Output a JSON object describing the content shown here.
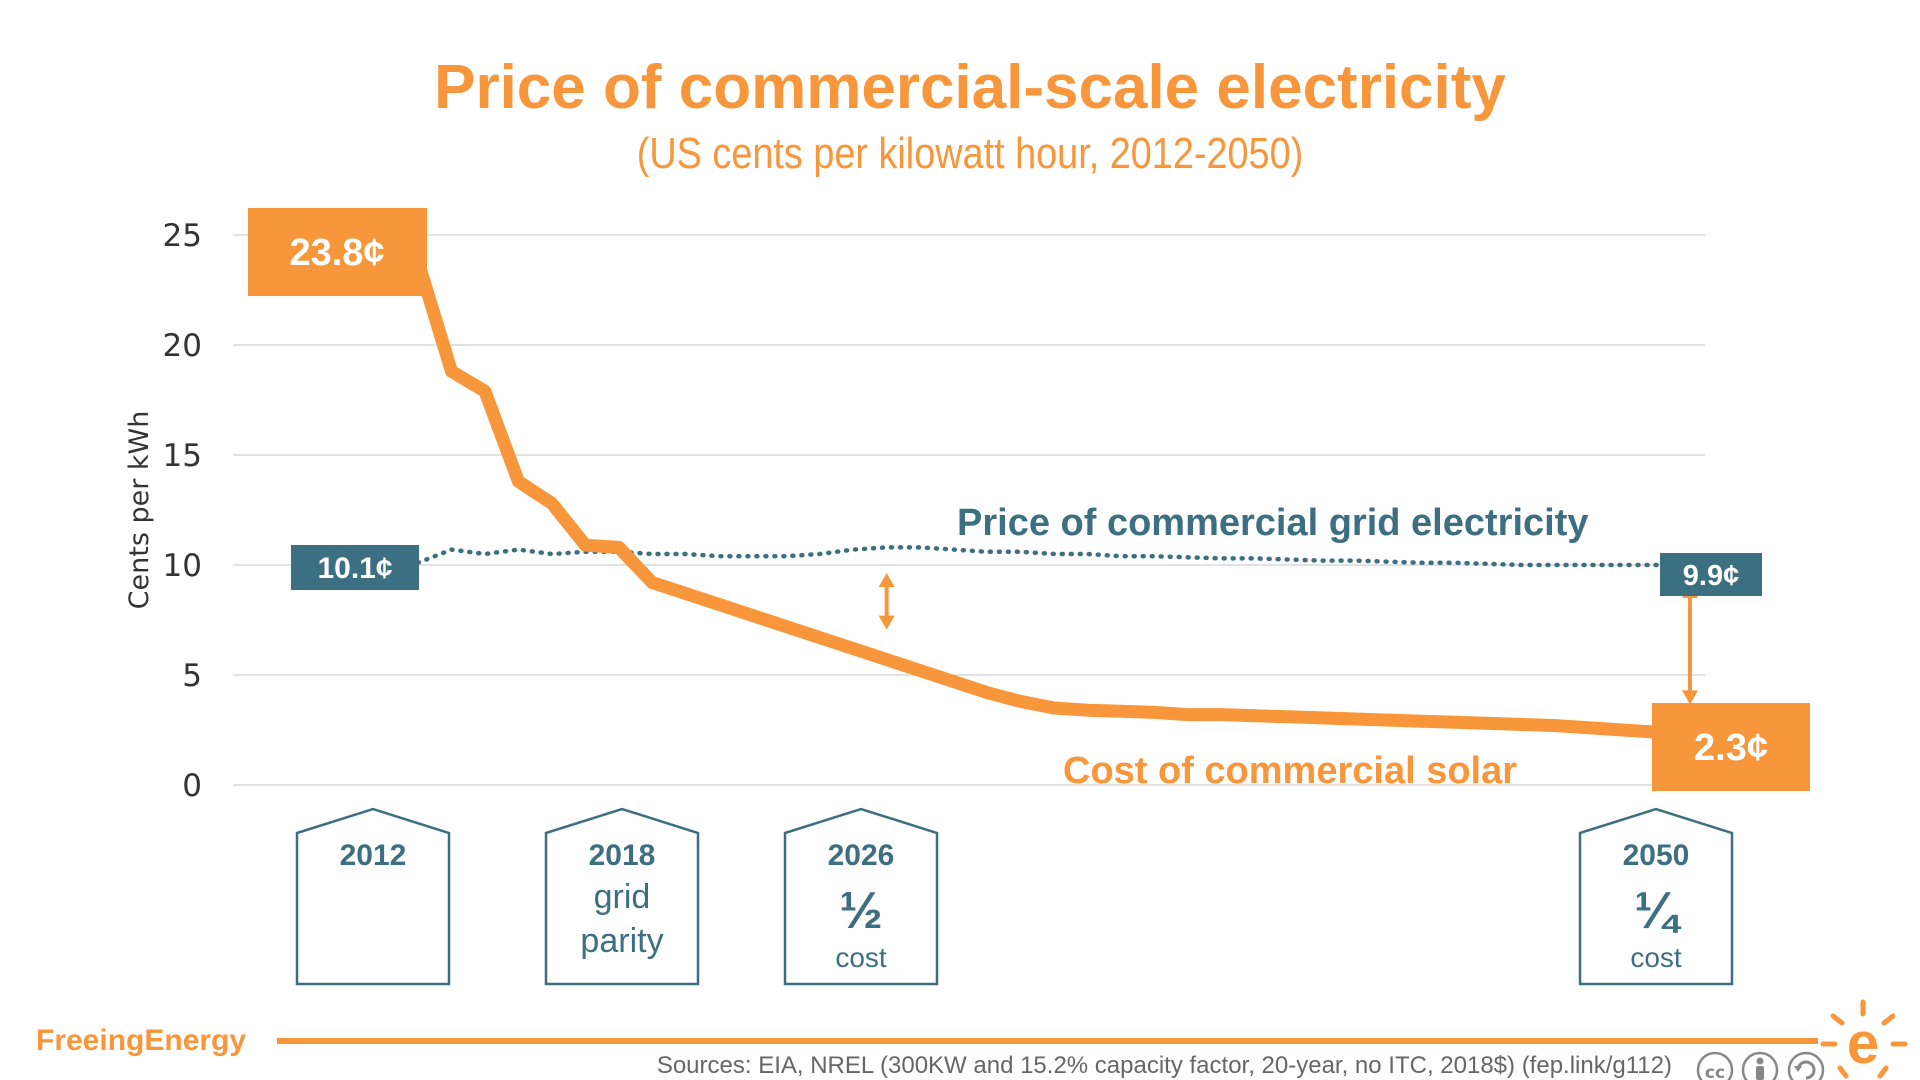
{
  "chart_data": {
    "type": "line",
    "title": "Price of commercial-scale electricity",
    "subtitle": "(US cents per kilowatt hour, 2012-2050)",
    "ylabel": "Cents per kWh",
    "xlabel": "",
    "ylim": [
      0,
      25
    ],
    "yticks": [
      "0",
      "5",
      "10",
      "15",
      "20",
      "25"
    ],
    "grid": true,
    "x": [
      2012,
      2013,
      2014,
      2015,
      2016,
      2017,
      2018,
      2019,
      2020,
      2021,
      2022,
      2023,
      2024,
      2025,
      2026,
      2027,
      2028,
      2029,
      2030,
      2031,
      2032,
      2033,
      2034,
      2035,
      2036,
      2037,
      2038,
      2039,
      2040,
      2041,
      2042,
      2043,
      2044,
      2045,
      2046,
      2047,
      2048,
      2049,
      2050
    ],
    "series": [
      {
        "name": "Cost of commercial solar",
        "color": "#f7963a",
        "style": "solid",
        "values": [
          23.8,
          18.8,
          17.9,
          13.8,
          12.8,
          10.9,
          10.8,
          9.2,
          8.7,
          8.2,
          7.7,
          7.2,
          6.7,
          6.2,
          5.7,
          5.2,
          4.7,
          4.2,
          3.8,
          3.5,
          3.4,
          3.35,
          3.3,
          3.2,
          3.2,
          3.15,
          3.1,
          3.05,
          3.0,
          2.95,
          2.9,
          2.85,
          2.8,
          2.75,
          2.7,
          2.6,
          2.5,
          2.4,
          2.3
        ]
      },
      {
        "name": "Price of commercial grid electricity",
        "color": "#3d6f83",
        "style": "dotted",
        "values": [
          10.1,
          10.7,
          10.5,
          10.7,
          10.5,
          10.6,
          10.6,
          10.5,
          10.5,
          10.4,
          10.4,
          10.4,
          10.5,
          10.7,
          10.8,
          10.8,
          10.7,
          10.6,
          10.6,
          10.5,
          10.5,
          10.4,
          10.4,
          10.35,
          10.3,
          10.3,
          10.25,
          10.2,
          10.2,
          10.15,
          10.1,
          10.1,
          10.05,
          10.0,
          10.0,
          10.0,
          10.0,
          10.0,
          9.9
        ]
      }
    ],
    "value_labels": [
      {
        "text": "23.8¢",
        "series": "Cost of commercial solar",
        "year": 2012
      },
      {
        "text": "10.1¢",
        "series": "Price of commercial grid electricity",
        "year": 2012
      },
      {
        "text": "9.9¢",
        "series": "Price of commercial grid electricity",
        "year": 2050
      },
      {
        "text": "2.3¢",
        "series": "Cost of commercial solar",
        "year": 2050
      }
    ],
    "series_labels": {
      "grid": "Price of commercial grid electricity",
      "solar": "Cost of commercial solar"
    },
    "gap_arrows": [
      {
        "year": 2026,
        "from": 10.0,
        "to": 6.7
      },
      {
        "year": 2050,
        "from": 9.5,
        "to": 3.3
      }
    ],
    "milestones": [
      {
        "year": "2012",
        "lines": []
      },
      {
        "year": "2018",
        "lines": [
          "grid",
          "parity"
        ]
      },
      {
        "year": "2026",
        "fraction": "½",
        "sub": "cost"
      },
      {
        "year": "2050",
        "fraction": "¼",
        "sub": "cost"
      }
    ]
  },
  "footer": {
    "brand": "FreeingEnergy",
    "logo_letter": "e",
    "sources": "Sources: EIA, NREL (300KW and 15.2% capacity factor, 20-year, no ITC, 2018$) (fep.link/g112)",
    "license_icons": [
      "cc-icon",
      "by-icon",
      "share-alike-icon"
    ]
  },
  "colors": {
    "orange": "#f7963a",
    "teal": "#3d6f83",
    "grid": "#d9d9d9",
    "axis_text": "#333333"
  }
}
